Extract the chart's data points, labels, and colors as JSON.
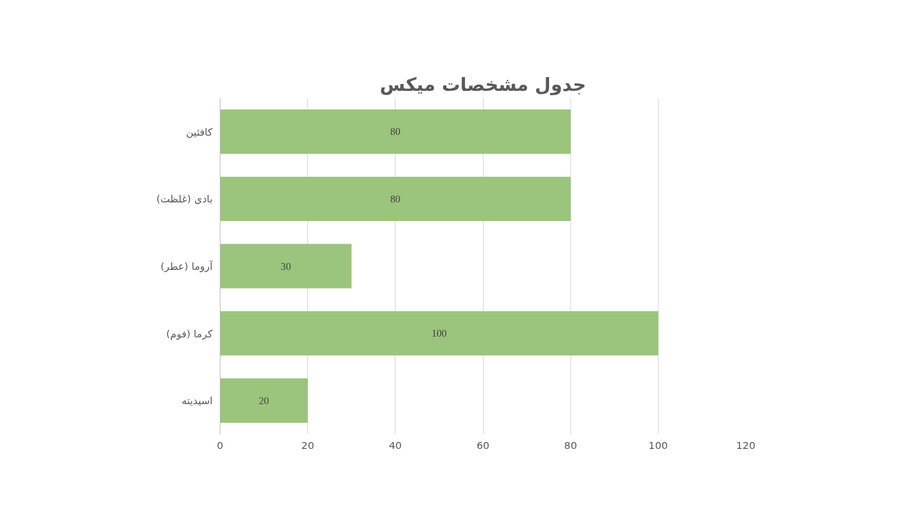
{
  "chart_data": {
    "type": "bar",
    "orientation": "horizontal",
    "title": "جدول مشخصات میکس",
    "categories": [
      "کافئین",
      "بادی (غلظت)",
      "آروما (عطر)",
      "کرما (فوم)",
      "اسیدیته"
    ],
    "values": [
      80,
      80,
      30,
      100,
      20
    ],
    "color": "#9bc47d",
    "xlim": [
      0,
      120
    ],
    "xticks": [
      0,
      20,
      40,
      60,
      80,
      100,
      120
    ],
    "grid": "x",
    "data_labels": true
  }
}
